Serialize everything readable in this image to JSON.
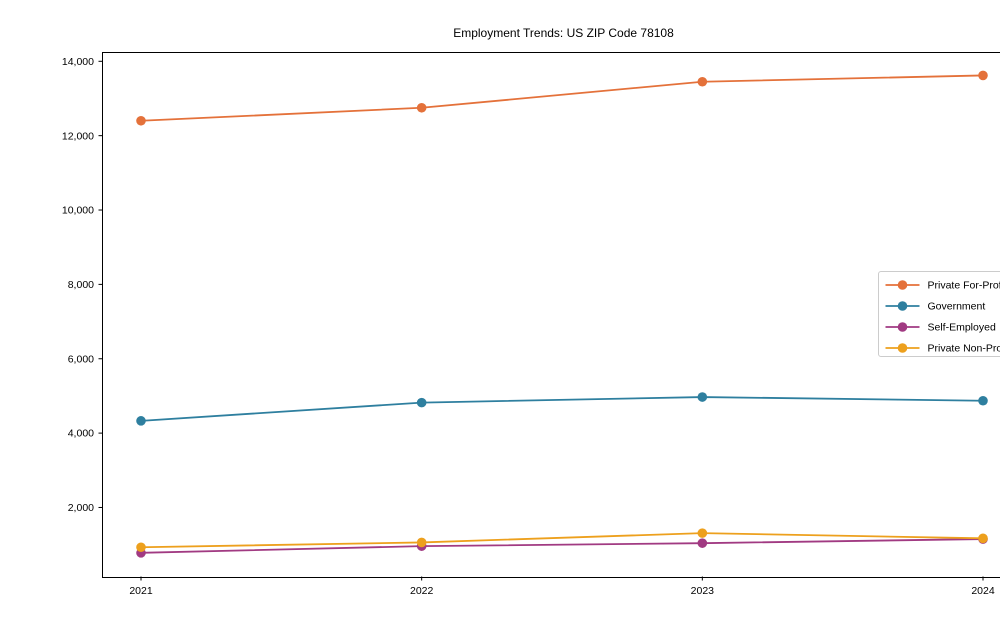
{
  "chart_data": {
    "type": "line",
    "title": "Employment Trends: US ZIP Code 78108",
    "xlabel": "",
    "ylabel": "",
    "x": [
      2021,
      2022,
      2023,
      2024
    ],
    "series": [
      {
        "name": "Private For-Profit",
        "color": "#e4713a",
        "values": [
          12400,
          12750,
          13450,
          13620
        ]
      },
      {
        "name": "Government",
        "color": "#2e7f9f",
        "values": [
          4330,
          4820,
          4970,
          4870
        ]
      },
      {
        "name": "Self-Employed",
        "color": "#a13a82",
        "values": [
          780,
          960,
          1040,
          1150
        ]
      },
      {
        "name": "Private Non-Profit",
        "color": "#eda01d",
        "values": [
          930,
          1060,
          1310,
          1170
        ]
      }
    ],
    "ylim": [
      130,
      14250
    ],
    "yticks": [
      2000,
      4000,
      6000,
      8000,
      10000,
      12000,
      14000
    ],
    "ytick_labels": [
      "2,000",
      "4,000",
      "6,000",
      "8,000",
      "10,000",
      "12,000",
      "14,000"
    ],
    "xtick_labels": [
      "2021",
      "2022",
      "2023",
      "2024"
    ],
    "grid": false,
    "legend_position": "center-right",
    "marker": "circle",
    "axis_color": "#000000",
    "legend_border_color": "#cccccc"
  }
}
